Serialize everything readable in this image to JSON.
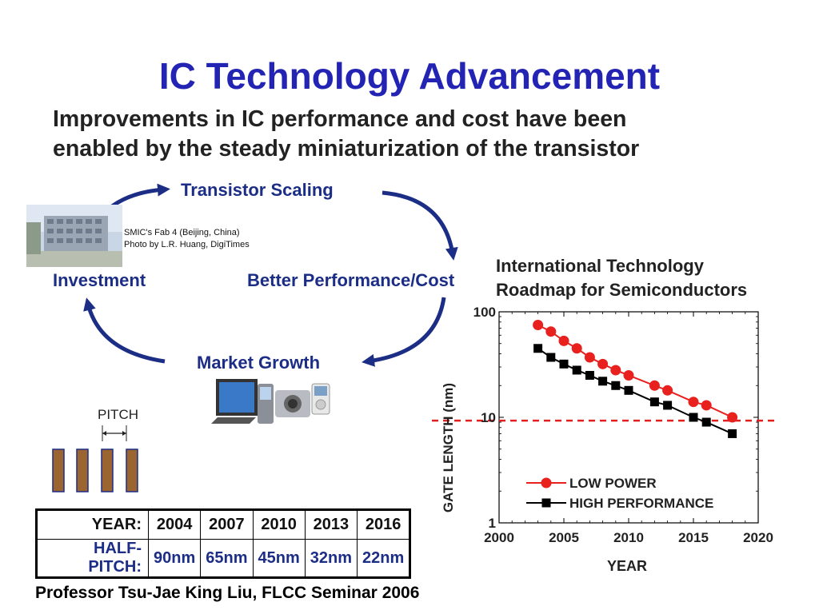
{
  "slide": {
    "title": "IC Technology Advancement",
    "subtitle_line1": "Improvements in IC performance and cost have been",
    "subtitle_line2": "enabled by the steady miniaturization of the transistor",
    "footer": "Professor Tsu-Jae King Liu, FLCC Seminar 2006"
  },
  "cycle": {
    "top": "Transistor Scaling",
    "right": "Better Performance/Cost",
    "bottom": "Market Growth",
    "left": "Investment",
    "photo_caption_line1": "SMIC's Fab 4 (Beijing, China)",
    "photo_caption_line2": "Photo by L.R. Huang, DigiTimes",
    "arrow_color": "#1c2d86"
  },
  "pitch": {
    "label": "PITCH",
    "bar_color": "#9a6530"
  },
  "pitch_table": {
    "row1_header": "YEAR:",
    "row2_header": "HALF-PITCH:",
    "years": [
      "2004",
      "2007",
      "2010",
      "2013",
      "2016"
    ],
    "half_pitch": [
      "90nm",
      "65nm",
      "45nm",
      "32nm",
      "22nm"
    ]
  },
  "itrs": {
    "title_line1": "International Technology",
    "title_line2": "Roadmap for Semiconductors"
  },
  "chart_data": {
    "type": "line",
    "xlabel": "YEAR",
    "ylabel": "GATE LENGTH (nm)",
    "xlim": [
      2000,
      2020
    ],
    "ylim": [
      1,
      100
    ],
    "y_scale": "log",
    "x_ticks": [
      "2000",
      "2005",
      "2010",
      "2015",
      "2020"
    ],
    "y_ticks": [
      "1",
      "10",
      "100"
    ],
    "reference_line": {
      "y": 9.3,
      "style": "dashed",
      "color": "#e02020"
    },
    "legend_position": "bottom-left",
    "series": [
      {
        "name": "LOW POWER",
        "marker": "circle",
        "color": "#e8201e",
        "x": [
          2003,
          2004,
          2005,
          2006,
          2007,
          2008,
          2009,
          2010,
          2012,
          2013,
          2015,
          2016,
          2018
        ],
        "values": [
          75,
          65,
          53,
          45,
          37,
          32,
          28,
          25,
          20,
          18,
          14,
          13,
          10
        ]
      },
      {
        "name": "HIGH PERFORMANCE",
        "marker": "square",
        "color": "#000000",
        "x": [
          2003,
          2004,
          2005,
          2006,
          2007,
          2008,
          2009,
          2010,
          2012,
          2013,
          2015,
          2016,
          2018
        ],
        "values": [
          45,
          37,
          32,
          28,
          25,
          22,
          20,
          18,
          14,
          13,
          10,
          9,
          7
        ]
      }
    ]
  }
}
